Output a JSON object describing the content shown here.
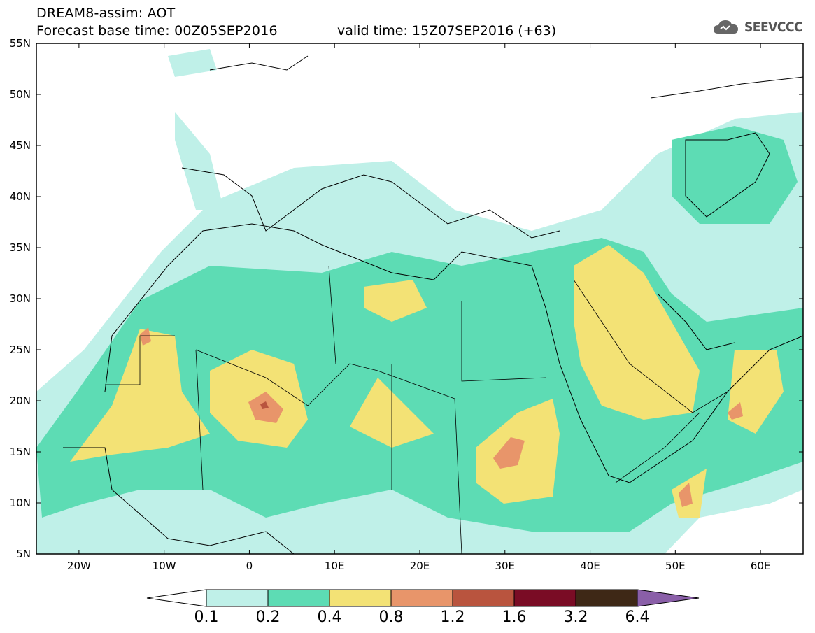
{
  "title": {
    "line1": "DREAM8-assim: AOT",
    "line2": "Forecast base time: 00Z05SEP2016",
    "valid": "valid time: 15Z07SEP2016 (+63)"
  },
  "logo": {
    "text": "SEEVCCC",
    "icon": "cloud-icon"
  },
  "map": {
    "lon_range": [
      -25,
      65
    ],
    "lat_range": [
      5,
      55
    ],
    "lat_labels": [
      "55N",
      "50N",
      "45N",
      "40N",
      "35N",
      "30N",
      "25N",
      "20N",
      "15N",
      "10N",
      "5N"
    ],
    "lon_labels": [
      "20W",
      "10W",
      "0",
      "10E",
      "20E",
      "30E",
      "40E",
      "50E",
      "60E"
    ]
  },
  "colorbar": {
    "labels": [
      "0.1",
      "0.2",
      "0.4",
      "0.8",
      "1.2",
      "1.6",
      "3.2",
      "6.4"
    ],
    "colors": [
      "#ffffff",
      "#bff0e8",
      "#5ddcb4",
      "#f3e275",
      "#e8956a",
      "#b9543e",
      "#7a0c25",
      "#3e2816",
      "#8a5fa8"
    ]
  }
}
